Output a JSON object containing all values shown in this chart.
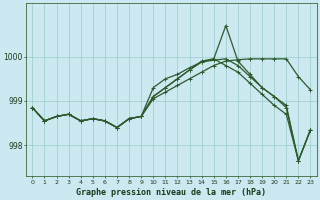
{
  "background_color": "#cce8f0",
  "grid_color": "#99cccc",
  "line_color": "#2d5a2d",
  "x_labels": [
    "0",
    "1",
    "2",
    "3",
    "4",
    "5",
    "6",
    "7",
    "8",
    "9",
    "10",
    "11",
    "12",
    "13",
    "14",
    "15",
    "16",
    "17",
    "18",
    "19",
    "20",
    "21",
    "22",
    "23"
  ],
  "yticks": [
    998,
    999,
    1000
  ],
  "ylim": [
    997.3,
    1001.2
  ],
  "xlim": [
    -0.5,
    23.5
  ],
  "xlabel": "Graphe pression niveau de la mer (hPa)",
  "series": [
    [
      998.85,
      998.55,
      998.65,
      998.7,
      998.55,
      998.6,
      998.55,
      998.4,
      998.6,
      998.65,
      999.05,
      999.2,
      999.35,
      999.5,
      999.65,
      999.8,
      999.9,
      999.93,
      999.95,
      999.95,
      999.95,
      999.95,
      999.55,
      999.25
    ],
    [
      998.85,
      998.55,
      998.65,
      998.7,
      998.55,
      998.6,
      998.55,
      998.4,
      998.6,
      998.65,
      999.1,
      999.3,
      999.5,
      999.7,
      999.88,
      999.95,
      1000.7,
      999.9,
      999.6,
      999.3,
      999.1,
      998.9,
      997.65,
      998.35
    ],
    [
      998.85,
      998.55,
      998.65,
      998.7,
      998.55,
      998.6,
      998.55,
      998.4,
      998.6,
      998.65,
      999.1,
      999.3,
      999.5,
      999.7,
      999.9,
      999.95,
      999.8,
      999.65,
      999.4,
      999.15,
      998.9,
      998.7,
      997.65,
      998.35
    ],
    [
      998.85,
      998.55,
      998.65,
      998.7,
      998.55,
      998.6,
      998.55,
      998.4,
      998.6,
      998.65,
      999.3,
      999.5,
      999.6,
      999.75,
      999.88,
      999.92,
      999.95,
      999.8,
      999.55,
      999.3,
      999.1,
      998.85,
      997.65,
      998.35
    ]
  ],
  "linewidths": [
    0.9,
    0.9,
    0.9,
    0.9
  ],
  "title_fontsize": 6,
  "xlabel_fontsize": 6,
  "xtick_fontsize": 4.5,
  "ytick_fontsize": 5.5
}
